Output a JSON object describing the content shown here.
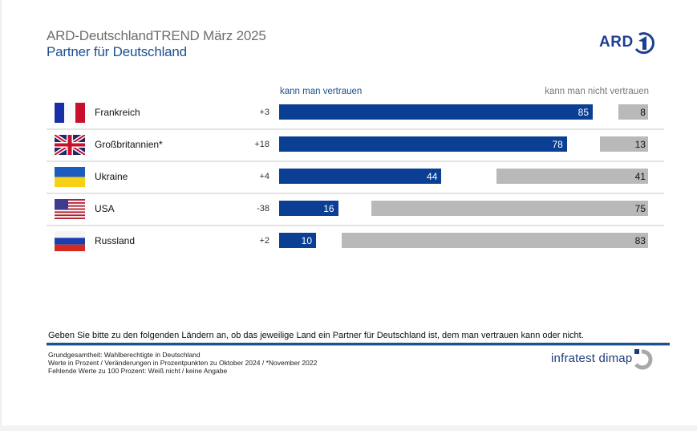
{
  "header": {
    "title": "ARD-DeutschlandTREND März 2025",
    "subtitle": "Partner für Deutschland",
    "logo_text": "ARD"
  },
  "colors": {
    "trust_bar": "#0a3f94",
    "distrust_bar": "#b9b9b9",
    "title_blue": "#1d4f91",
    "title_gray": "#6e6e6e"
  },
  "chart_data": {
    "type": "bar",
    "orientation": "horizontal-diverging",
    "title": "Partner für Deutschland",
    "legend": {
      "trust": "kann man vertrauen",
      "distrust": "kann man nicht vertrauen",
      "placement": "top"
    },
    "categories": [
      "Frankreich",
      "Großbritannien*",
      "Ukraine",
      "USA",
      "Russland"
    ],
    "flags": [
      "france-flag",
      "uk-flag",
      "ukraine-flag",
      "usa-flag",
      "russia-flag"
    ],
    "changes": [
      "+3",
      "+18",
      "+4",
      "-38",
      "+2"
    ],
    "series": [
      {
        "name": "kann man vertrauen",
        "values": [
          85,
          78,
          44,
          16,
          10
        ]
      },
      {
        "name": "kann man nicht vertrauen",
        "values": [
          8,
          13,
          41,
          75,
          83
        ]
      }
    ],
    "xlim": [
      0,
      100
    ],
    "units": "Prozent"
  },
  "footer": {
    "question": "Geben Sie bitte zu den folgenden Ländern an, ob das jeweilige Land ein Partner für Deutschland ist, dem man vertrauen kann oder nicht.",
    "notes": [
      "Grundgesamtheit: Wahlberechtigte in Deutschland",
      "Werte in Prozent / Veränderungen in Prozentpunkten zu Oktober 2024 / *November 2022",
      "Fehlende Werte zu 100 Prozent: Weiß nicht / keine Angabe"
    ],
    "brand": "infratest dimap"
  }
}
